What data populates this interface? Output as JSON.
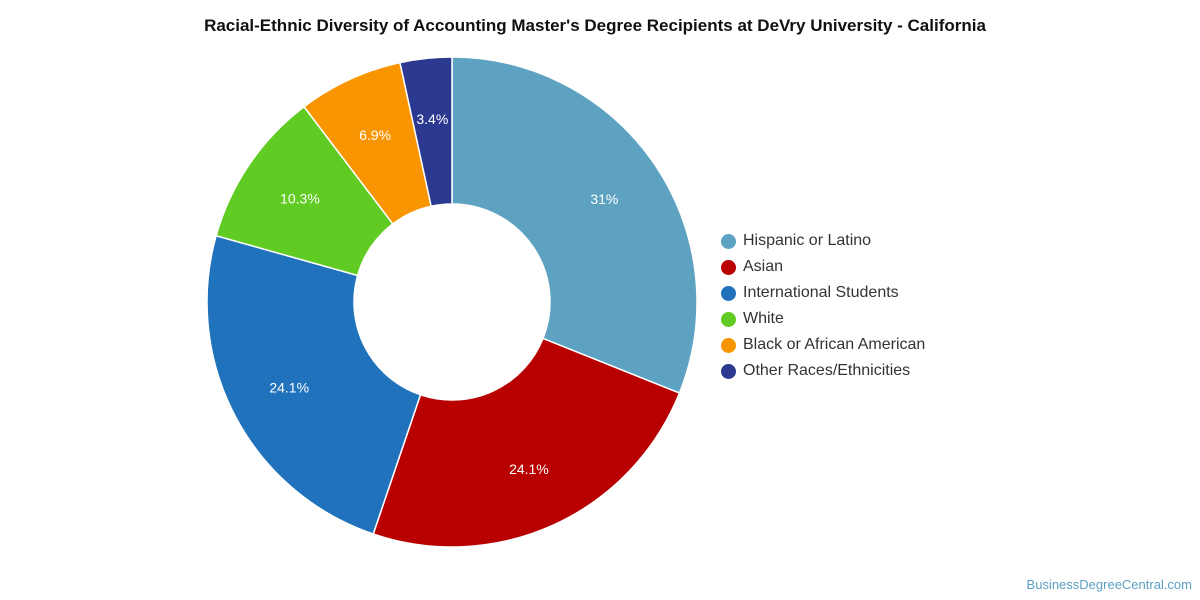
{
  "chart_data": {
    "type": "pie",
    "title": "Racial-Ethnic Diversity of Accounting Master's Degree Recipients at DeVry University - California",
    "categories": [
      "Hispanic or Latino",
      "Asian",
      "International Students",
      "White",
      "Black or African American",
      "Other Races/Ethnicities"
    ],
    "values": [
      31,
      24.1,
      24.1,
      10.3,
      6.9,
      3.4
    ],
    "value_labels": [
      "31%",
      "24.1%",
      "24.1%",
      "10.3%",
      "6.9%",
      "3.4%"
    ],
    "colors": [
      "#5ea2c1",
      "#b80000",
      "#1f72bb",
      "#60cc23",
      "#f89500",
      "#2c3990"
    ],
    "donut": true,
    "legend_position": "right"
  },
  "footer": {
    "source": "BusinessDegreeCentral.com"
  }
}
